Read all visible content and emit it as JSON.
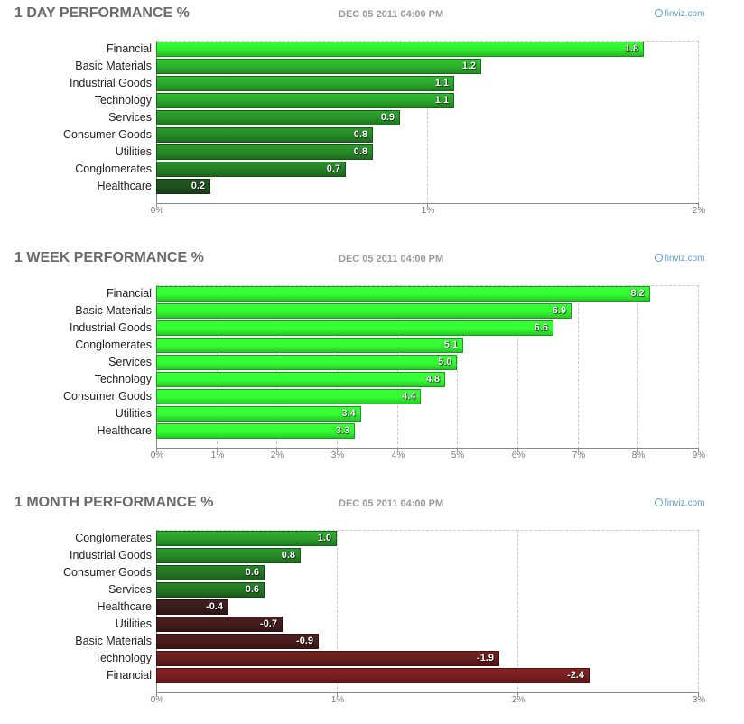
{
  "chart_data": [
    {
      "type": "bar",
      "orientation": "horizontal",
      "title": "1 DAY PERFORMANCE %",
      "date": "DEC 05 2011 04:00 PM",
      "brand": "finviz.com",
      "categories": [
        "Financial",
        "Basic Materials",
        "Industrial Goods",
        "Technology",
        "Services",
        "Consumer Goods",
        "Utilities",
        "Conglomerates",
        "Healthcare"
      ],
      "values": [
        1.8,
        1.2,
        1.1,
        1.1,
        0.9,
        0.8,
        0.8,
        0.7,
        0.2
      ],
      "value_labels": [
        "1.8",
        "1.2",
        "1.1",
        "1.1",
        "0.9",
        "0.8",
        "0.8",
        "0.7",
        "0.2"
      ],
      "xlim": [
        0,
        2
      ],
      "xticks": [
        0,
        1,
        2
      ],
      "xtick_labels": [
        "0%",
        "1%",
        "2%"
      ],
      "grid": true
    },
    {
      "type": "bar",
      "orientation": "horizontal",
      "title": "1 WEEK PERFORMANCE %",
      "date": "DEC 05 2011 04:00 PM",
      "brand": "finviz.com",
      "categories": [
        "Financial",
        "Basic Materials",
        "Industrial Goods",
        "Conglomerates",
        "Services",
        "Technology",
        "Consumer Goods",
        "Utilities",
        "Healthcare"
      ],
      "values": [
        8.2,
        6.9,
        6.6,
        5.1,
        5.0,
        4.8,
        4.4,
        3.4,
        3.3
      ],
      "value_labels": [
        "8.2",
        "6.9",
        "6.6",
        "5.1",
        "5.0",
        "4.8",
        "4.4",
        "3.4",
        "3.3"
      ],
      "xlim": [
        0,
        9
      ],
      "xticks": [
        0,
        1,
        2,
        3,
        4,
        5,
        6,
        7,
        8,
        9
      ],
      "xtick_labels": [
        "0%",
        "1%",
        "2%",
        "3%",
        "4%",
        "5%",
        "6%",
        "7%",
        "8%",
        "9%"
      ],
      "grid": true
    },
    {
      "type": "bar",
      "orientation": "horizontal",
      "title": "1 MONTH PERFORMANCE %",
      "date": "DEC 05 2011 04:00 PM",
      "brand": "finviz.com",
      "categories": [
        "Conglomerates",
        "Industrial Goods",
        "Consumer Goods",
        "Services",
        "Healthcare",
        "Utilities",
        "Basic Materials",
        "Technology",
        "Financial"
      ],
      "values": [
        1.0,
        0.8,
        0.6,
        0.6,
        -0.4,
        -0.7,
        -0.9,
        -1.9,
        -2.4
      ],
      "value_labels": [
        "1.0",
        "0.8",
        "0.6",
        "0.6",
        "-0.4",
        "-0.7",
        "-0.9",
        "-1.9",
        "-2.4"
      ],
      "xlim": [
        0,
        3
      ],
      "xticks": [
        0,
        1,
        2,
        3
      ],
      "xtick_labels": [
        "0%",
        "1%",
        "2%",
        "3%"
      ],
      "bar_length": "absolute value",
      "grid": true
    }
  ],
  "colors": {
    "positive_bright": "#33ff33",
    "positive_dark": "#1e3a1e",
    "negative_dark": "#2e1a1a",
    "negative_bright": "#7a1f1f"
  }
}
